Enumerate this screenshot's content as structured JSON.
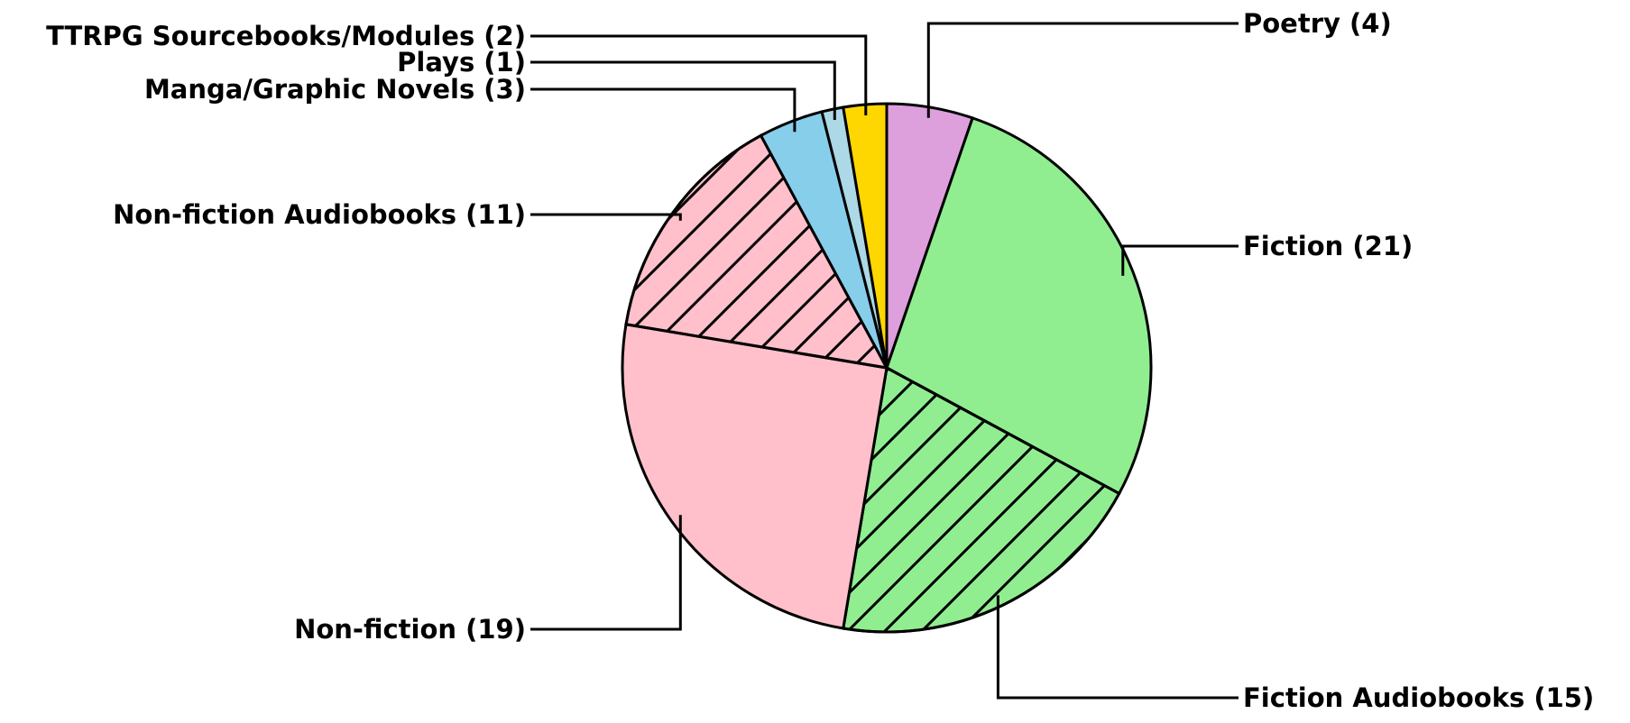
{
  "chart_data": {
    "type": "pie",
    "title": "",
    "start_angle_deg": 90,
    "direction": "clockwise",
    "legend": "none",
    "slices": [
      {
        "label": "Poetry",
        "value": 4,
        "display": "Poetry (4)",
        "color": "#DDA0DD",
        "hatch": false
      },
      {
        "label": "Fiction",
        "value": 21,
        "display": "Fiction (21)",
        "color": "#90EE90",
        "hatch": false
      },
      {
        "label": "Fiction Audiobooks",
        "value": 15,
        "display": "Fiction Audiobooks (15)",
        "color": "#90EE90",
        "hatch": true
      },
      {
        "label": "Non-fiction",
        "value": 19,
        "display": "Non-fiction (19)",
        "color": "#FFC0CB",
        "hatch": false
      },
      {
        "label": "Non-fiction Audiobooks",
        "value": 11,
        "display": "Non-fiction Audiobooks (11)",
        "color": "#FFC0CB",
        "hatch": true
      },
      {
        "label": "Manga/Graphic Novels",
        "value": 3,
        "display": "Manga/Graphic Novels (3)",
        "color": "#87CEEB",
        "hatch": false
      },
      {
        "label": "Plays",
        "value": 1,
        "display": "Plays (1)",
        "color": "#ADD8E6",
        "hatch": false
      },
      {
        "label": "TTRPG Sourcebooks/Modules",
        "value": 2,
        "display": "TTRPG Sourcebooks/Modules (2)",
        "color": "#FFD700",
        "hatch": false
      }
    ]
  }
}
